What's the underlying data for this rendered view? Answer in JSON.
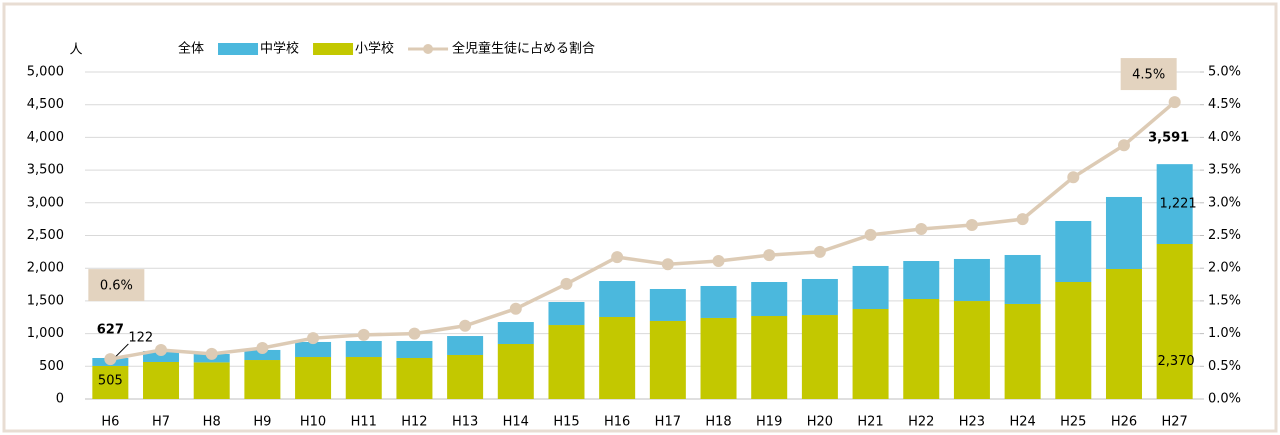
{
  "chart_data": {
    "type": "bar",
    "stacked": true,
    "ylabel": "人",
    "categories": [
      "H6",
      "H7",
      "H8",
      "H9",
      "H10",
      "H11",
      "H12",
      "H13",
      "H14",
      "H15",
      "H16",
      "H17",
      "H18",
      "H19",
      "H20",
      "H21",
      "H22",
      "H23",
      "H24",
      "H25",
      "H26",
      "H27"
    ],
    "series": [
      {
        "name": "全体",
        "type": "label",
        "values": [
          627,
          null,
          null,
          null,
          null,
          null,
          null,
          null,
          null,
          null,
          null,
          null,
          null,
          null,
          null,
          null,
          null,
          null,
          null,
          null,
          null,
          3591
        ],
        "value_labels": [
          "627",
          null,
          null,
          null,
          null,
          null,
          null,
          null,
          null,
          null,
          null,
          null,
          null,
          null,
          null,
          null,
          null,
          null,
          null,
          null,
          null,
          "3,591"
        ]
      },
      {
        "name": "中学校",
        "type": "bar",
        "color": "#4bb8dd",
        "values": [
          122,
          168,
          128,
          154,
          230,
          245,
          260,
          290,
          336,
          352,
          550,
          489,
          489,
          520,
          551,
          658,
          581,
          643,
          749,
          933,
          1101,
          1221
        ],
        "value_labels": [
          "122",
          null,
          null,
          null,
          null,
          null,
          null,
          null,
          null,
          null,
          null,
          null,
          null,
          null,
          null,
          null,
          null,
          null,
          null,
          null,
          null,
          "1,221"
        ]
      },
      {
        "name": "小学校",
        "type": "bar",
        "color": "#c3c800",
        "values": [
          505,
          566,
          560,
          596,
          642,
          642,
          627,
          673,
          841,
          1131,
          1254,
          1193,
          1239,
          1269,
          1284,
          1376,
          1529,
          1498,
          1453,
          1789,
          1988,
          2370
        ],
        "value_labels": [
          "505",
          null,
          null,
          null,
          null,
          null,
          null,
          null,
          null,
          null,
          null,
          null,
          null,
          null,
          null,
          null,
          null,
          null,
          null,
          null,
          null,
          "2,370"
        ]
      },
      {
        "name": "全児童生徒に占める割合",
        "type": "line",
        "axis": "y2",
        "color": "#ddcbb5",
        "values": [
          0.61,
          0.75,
          0.69,
          0.78,
          0.93,
          0.98,
          1.0,
          1.12,
          1.38,
          1.76,
          2.17,
          2.06,
          2.11,
          2.2,
          2.25,
          2.51,
          2.6,
          2.66,
          2.75,
          3.39,
          3.88,
          4.54
        ],
        "value_labels": [
          "0.6%",
          null,
          null,
          null,
          null,
          null,
          null,
          null,
          null,
          null,
          null,
          null,
          null,
          null,
          null,
          null,
          null,
          null,
          null,
          null,
          null,
          "4.5%"
        ]
      }
    ],
    "ylim": [
      0,
      5000
    ],
    "yticks": [
      0,
      500,
      {
        "value": 1000,
        "label": "1,000"
      },
      {
        "value": 1500,
        "label": "1,500"
      },
      {
        "value": 2000,
        "label": "2,000"
      },
      {
        "value": 2500,
        "label": "2,500"
      },
      {
        "value": 3000,
        "label": "3,000"
      },
      {
        "value": 3500,
        "label": "3,500"
      },
      {
        "value": 4000,
        "label": "4,000"
      },
      {
        "value": 4500,
        "label": "4,500"
      },
      {
        "value": 5000,
        "label": "5,000"
      }
    ],
    "y2lim": [
      0,
      5
    ],
    "y2ticks": [
      {
        "value": 0,
        "label": "0.0%"
      },
      {
        "value": 0.5,
        "label": "0.5%"
      },
      {
        "value": 1,
        "label": "1.0%"
      },
      {
        "value": 1.5,
        "label": "1.5%"
      },
      {
        "value": 2,
        "label": "2.0%"
      },
      {
        "value": 2.5,
        "label": "2.5%"
      },
      {
        "value": 3,
        "label": "3.0%"
      },
      {
        "value": 3.5,
        "label": "3.5%"
      },
      {
        "value": 4,
        "label": "4.0%"
      },
      {
        "value": 4.5,
        "label": "4.5%"
      },
      {
        "value": 5,
        "label": "5.0%"
      }
    ],
    "grid": true,
    "legend": "top"
  }
}
